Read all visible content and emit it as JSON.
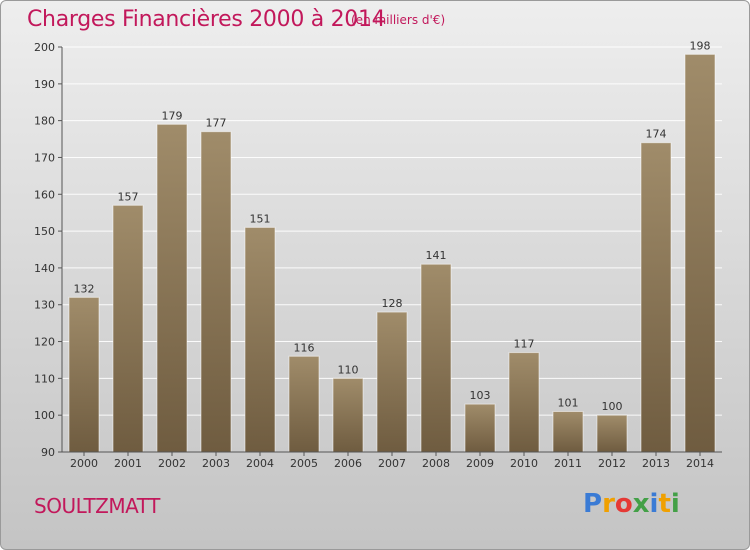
{
  "title": "Charges Financières 2000 à 2014",
  "subtitle": "(en milliers d'€)",
  "location": "SOULTZMATT",
  "logo": "Proxiti",
  "colors": {
    "title": "#c2185b",
    "bar_top": "#a08c6a",
    "bar_bottom": "#6f5c40",
    "logo_letters": [
      "#3a7bd5",
      "#f0a000",
      "#e53935",
      "#43a047",
      "#3a7bd5",
      "#f0a000",
      "#43a047"
    ]
  },
  "chart_data": {
    "type": "bar",
    "categories": [
      "2000",
      "2001",
      "2002",
      "2003",
      "2004",
      "2005",
      "2006",
      "2007",
      "2008",
      "2009",
      "2010",
      "2011",
      "2012",
      "2013",
      "2014"
    ],
    "values": [
      132,
      157,
      179,
      177,
      151,
      116,
      110,
      128,
      141,
      103,
      117,
      101,
      100,
      174,
      198
    ],
    "ylim": [
      90,
      200
    ],
    "yticks": [
      90,
      100,
      110,
      120,
      130,
      140,
      150,
      160,
      170,
      180,
      190,
      200
    ],
    "grid": true,
    "legend": "none"
  }
}
